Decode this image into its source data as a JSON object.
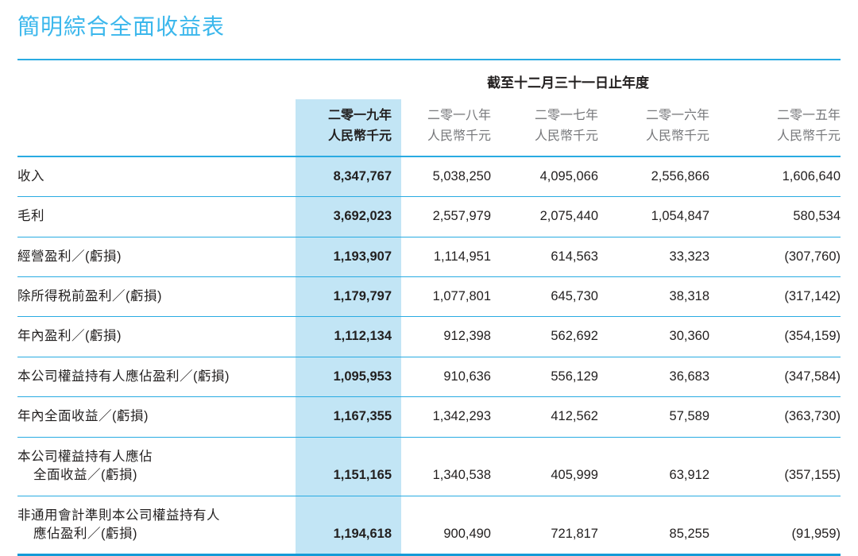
{
  "page": {
    "title": "簡明綜合全面收益表"
  },
  "colors": {
    "title": "#3BB7EC",
    "rule": "#29ABE2",
    "bottom_rule": "#149BD7",
    "highlight_column": "#C2E5F5",
    "secondary_header_gray": "#76777A",
    "text": "#221F1F"
  },
  "table": {
    "period_header": "截至十二月三十一日止年度",
    "columns": [
      {
        "year": "二零一九年",
        "unit": "人民幣千元",
        "highlighted": true
      },
      {
        "year": "二零一八年",
        "unit": "人民幣千元",
        "highlighted": false
      },
      {
        "year": "二零一七年",
        "unit": "人民幣千元",
        "highlighted": false
      },
      {
        "year": "二零一六年",
        "unit": "人民幣千元",
        "highlighted": false
      },
      {
        "year": "二零一五年",
        "unit": "人民幣千元",
        "highlighted": false
      }
    ],
    "rows": [
      {
        "label_lines": [
          "收入"
        ],
        "values": [
          "8,347,767",
          "5,038,250",
          "4,095,066",
          "2,556,866",
          "1,606,640"
        ]
      },
      {
        "label_lines": [
          "毛利"
        ],
        "values": [
          "3,692,023",
          "2,557,979",
          "2,075,440",
          "1,054,847",
          "580,534"
        ]
      },
      {
        "label_lines": [
          "經營盈利／(虧損)"
        ],
        "values": [
          "1,193,907",
          "1,114,951",
          "614,563",
          "33,323",
          "(307,760)"
        ]
      },
      {
        "label_lines": [
          "除所得税前盈利／(虧損)"
        ],
        "values": [
          "1,179,797",
          "1,077,801",
          "645,730",
          "38,318",
          "(317,142)"
        ]
      },
      {
        "label_lines": [
          "年內盈利／(虧損)"
        ],
        "values": [
          "1,112,134",
          "912,398",
          "562,692",
          "30,360",
          "(354,159)"
        ]
      },
      {
        "label_lines": [
          "本公司權益持有人應佔盈利／(虧損)"
        ],
        "values": [
          "1,095,953",
          "910,636",
          "556,129",
          "36,683",
          "(347,584)"
        ]
      },
      {
        "label_lines": [
          "年內全面收益／(虧損)"
        ],
        "values": [
          "1,167,355",
          "1,342,293",
          "412,562",
          "57,589",
          "(363,730)"
        ]
      },
      {
        "label_lines": [
          "本公司權益持有人應佔",
          "全面收益／(虧損)"
        ],
        "values": [
          "1,151,165",
          "1,340,538",
          "405,999",
          "63,912",
          "(357,155)"
        ]
      },
      {
        "label_lines": [
          "非通用會計準則本公司權益持有人",
          "應佔盈利／(虧損)"
        ],
        "values": [
          "1,194,618",
          "900,490",
          "721,817",
          "85,255",
          "(91,959)"
        ]
      }
    ]
  }
}
